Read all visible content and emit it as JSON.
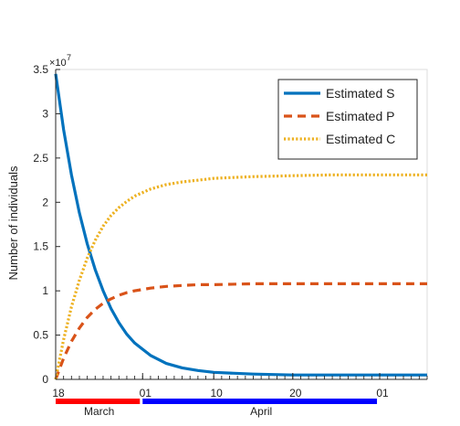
{
  "chart_data": {
    "type": "line",
    "ylabel": "Number of individuals",
    "y_exponent_label": "×10",
    "y_exponent_power": "7",
    "ylim": [
      0,
      3.5
    ],
    "yticks": [
      {
        "value": 0,
        "label": "0"
      },
      {
        "value": 0.5,
        "label": "0.5"
      },
      {
        "value": 1,
        "label": "1"
      },
      {
        "value": 1.5,
        "label": "1.5"
      },
      {
        "value": 2,
        "label": "2"
      },
      {
        "value": 2.5,
        "label": "2.5"
      },
      {
        "value": 3,
        "label": "3"
      },
      {
        "value": 3.5,
        "label": "3.5"
      }
    ],
    "xlim": [
      0,
      47
    ],
    "xticks": [
      {
        "value": 0,
        "label": "18"
      },
      {
        "value": 11,
        "label": "01"
      },
      {
        "value": 20,
        "label": "10"
      },
      {
        "value": 30,
        "label": "20"
      },
      {
        "value": 41,
        "label": "01"
      }
    ],
    "month_bands": [
      {
        "label": "March",
        "from": 0,
        "to": 11,
        "color": "#ff0000"
      },
      {
        "label": "April",
        "from": 11,
        "to": 41,
        "color": "#0000ff"
      }
    ],
    "grid": false,
    "legend_position": "top-right",
    "series": [
      {
        "name": "Estimated S",
        "color": "#0072bd",
        "style": "solid",
        "x": [
          0,
          1,
          2,
          3,
          4,
          5,
          6,
          7,
          8,
          9,
          10,
          12,
          14,
          16,
          18,
          20,
          25,
          30,
          35,
          40,
          47
        ],
        "y": [
          3.45,
          2.82,
          2.31,
          1.88,
          1.53,
          1.24,
          1.0,
          0.8,
          0.64,
          0.51,
          0.41,
          0.27,
          0.18,
          0.13,
          0.1,
          0.08,
          0.06,
          0.05,
          0.05,
          0.05,
          0.05
        ]
      },
      {
        "name": "Estimated P",
        "color": "#d95319",
        "style": "dashed",
        "x": [
          0,
          1,
          2,
          3,
          4,
          5,
          6,
          7,
          8,
          9,
          10,
          12,
          14,
          16,
          18,
          20,
          25,
          30,
          35,
          40,
          47
        ],
        "y": [
          0.0,
          0.24,
          0.43,
          0.58,
          0.7,
          0.79,
          0.86,
          0.91,
          0.95,
          0.98,
          1.0,
          1.03,
          1.05,
          1.06,
          1.07,
          1.07,
          1.08,
          1.08,
          1.08,
          1.08,
          1.08
        ]
      },
      {
        "name": "Estimated C",
        "color": "#edb120",
        "style": "dotted",
        "x": [
          0,
          1,
          2,
          3,
          4,
          5,
          6,
          7,
          8,
          9,
          10,
          12,
          14,
          16,
          18,
          20,
          25,
          30,
          35,
          40,
          47
        ],
        "y": [
          0.0,
          0.45,
          0.82,
          1.12,
          1.37,
          1.57,
          1.73,
          1.85,
          1.94,
          2.01,
          2.07,
          2.15,
          2.2,
          2.23,
          2.25,
          2.27,
          2.29,
          2.3,
          2.31,
          2.31,
          2.31
        ]
      }
    ]
  }
}
